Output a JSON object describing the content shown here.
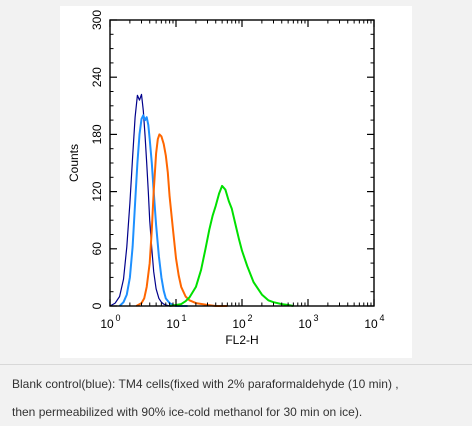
{
  "chart_data": {
    "type": "line",
    "title": "",
    "xlabel": "FL2-H",
    "ylabel": "Counts",
    "xscale": "log",
    "xlim": [
      1,
      10000
    ],
    "ylim": [
      0,
      300
    ],
    "x_ticks": [
      1,
      10,
      100,
      1000,
      10000
    ],
    "x_tick_labels": [
      {
        "base": "10",
        "exp": "0"
      },
      {
        "base": "10",
        "exp": "1"
      },
      {
        "base": "10",
        "exp": "2"
      },
      {
        "base": "10",
        "exp": "3"
      },
      {
        "base": "10",
        "exp": "4"
      }
    ],
    "y_ticks": [
      0,
      60,
      120,
      180,
      240,
      300
    ],
    "y_tick_labels": [
      "0",
      "60",
      "120",
      "180",
      "240",
      "300"
    ],
    "grid": false,
    "series": [
      {
        "color": "#00008b",
        "x": [
          1.0,
          1.2,
          1.4,
          1.6,
          1.8,
          2.0,
          2.2,
          2.4,
          2.6,
          2.8,
          3.0,
          3.2,
          3.4,
          3.6,
          3.8,
          4.0,
          4.3,
          4.6,
          5.0,
          5.5,
          6.0,
          6.5,
          7.0,
          8.0,
          9.0,
          10.0,
          11.0
        ],
        "y": [
          0,
          3,
          10,
          28,
          62,
          108,
          156,
          198,
          221,
          216,
          222,
          205,
          178,
          150,
          120,
          90,
          60,
          36,
          18,
          8,
          4,
          2,
          1,
          0,
          0,
          0,
          0
        ]
      },
      {
        "color": "#1e90ff",
        "x": [
          1.4,
          1.6,
          1.8,
          2.0,
          2.2,
          2.4,
          2.6,
          2.8,
          3.0,
          3.2,
          3.4,
          3.6,
          3.8,
          4.0,
          4.3,
          4.6,
          5.0,
          5.5,
          6.0,
          6.5,
          7.0,
          8.0,
          9.0,
          10.0,
          12.0,
          15.0
        ],
        "y": [
          0,
          4,
          12,
          30,
          62,
          108,
          150,
          180,
          196,
          200,
          195,
          198,
          190,
          175,
          150,
          120,
          85,
          52,
          30,
          16,
          8,
          3,
          1,
          0,
          0,
          0
        ]
      },
      {
        "color": "#ff6600",
        "x": [
          2.5,
          3.0,
          3.3,
          3.6,
          4.0,
          4.3,
          4.6,
          5.0,
          5.3,
          5.6,
          6.0,
          6.5,
          7.0,
          7.5,
          8.0,
          9.0,
          10.0,
          11.0,
          12.0,
          14.0,
          16.0,
          20.0,
          25.0,
          30.0,
          40.0,
          60.0
        ],
        "y": [
          0,
          3,
          8,
          20,
          45,
          80,
          120,
          160,
          175,
          180,
          178,
          170,
          158,
          140,
          115,
          80,
          50,
          32,
          20,
          10,
          6,
          3,
          2,
          1,
          0,
          0
        ]
      },
      {
        "color": "#00e000",
        "x": [
          8,
          10,
          12,
          14,
          16,
          20,
          24,
          28,
          32,
          36,
          40,
          45,
          50,
          56,
          63,
          70,
          80,
          90,
          100,
          120,
          150,
          200,
          250,
          300,
          400,
          500,
          600
        ],
        "y": [
          0,
          1,
          2,
          5,
          9,
          20,
          38,
          60,
          80,
          95,
          105,
          118,
          126,
          122,
          110,
          102,
          85,
          70,
          58,
          42,
          25,
          12,
          6,
          4,
          2,
          1,
          0
        ]
      }
    ]
  },
  "caption": {
    "line1": "Blank control(blue): TM4 cells(fixed with 2% paraformaldehyde (10 min) ,",
    "line2": "then permeabilized with 90% ice-cold methanol for 30 min on ice)."
  }
}
